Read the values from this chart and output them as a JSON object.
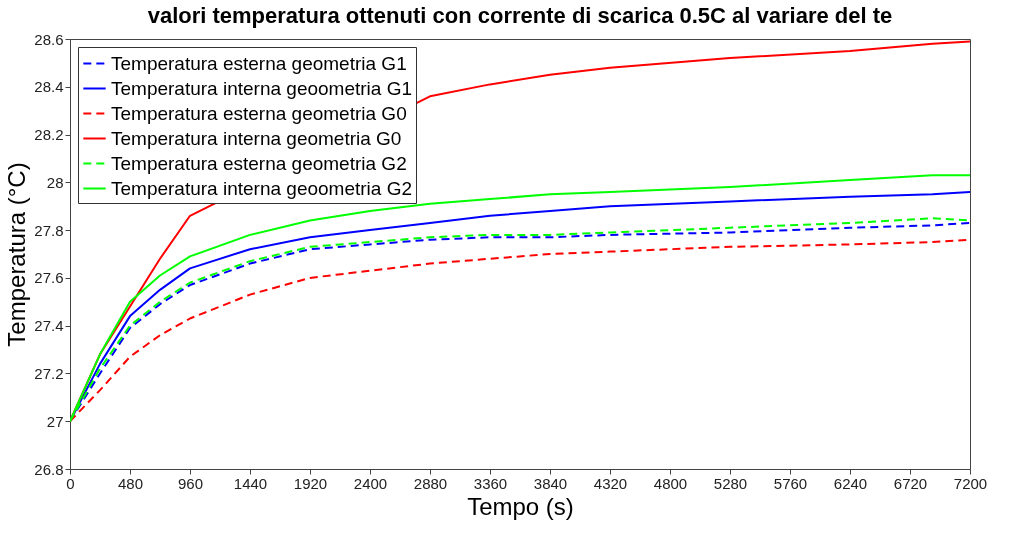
{
  "chart_data": {
    "type": "line",
    "title": "valori temperatura ottenuti con corrente di scarica 0.5C al variare del te",
    "xlabel": "Tempo (s)",
    "ylabel": "Temperatura (°C)",
    "x": [
      0,
      240,
      480,
      720,
      960,
      1440,
      1920,
      2400,
      2880,
      3360,
      3840,
      4320,
      5280,
      6240,
      6900,
      7200
    ],
    "series": [
      {
        "name": "Temperatura esterna geometria G1",
        "color": "#0000ff",
        "line_style": "dashed",
        "values": [
          27.0,
          27.2,
          27.39,
          27.49,
          27.57,
          27.66,
          27.72,
          27.74,
          27.76,
          27.77,
          27.77,
          27.78,
          27.79,
          27.81,
          27.82,
          27.83
        ]
      },
      {
        "name": "Temperatura interna geoometria G1",
        "color": "#0000ff",
        "line_style": "solid",
        "values": [
          27.0,
          27.24,
          27.44,
          27.55,
          27.64,
          27.72,
          27.77,
          27.8,
          27.83,
          27.86,
          27.88,
          27.9,
          27.92,
          27.94,
          27.95,
          27.96
        ]
      },
      {
        "name": "Temperatura esterna geometria G0",
        "color": "#ff0000",
        "line_style": "dashed",
        "values": [
          27.0,
          27.13,
          27.27,
          27.36,
          27.43,
          27.53,
          27.6,
          27.63,
          27.66,
          27.68,
          27.7,
          27.71,
          27.73,
          27.74,
          27.75,
          27.76
        ]
      },
      {
        "name": "Temperatura interna geometria G0",
        "color": "#ff0000",
        "line_style": "solid",
        "values": [
          27.0,
          27.28,
          27.48,
          27.68,
          27.86,
          null,
          null,
          null,
          28.36,
          28.41,
          28.45,
          28.48,
          28.52,
          28.55,
          28.58,
          28.59
        ]
      },
      {
        "name": "Temperatura esterna geometria G2",
        "color": "#00ff00",
        "line_style": "dashed",
        "values": [
          27.0,
          27.22,
          27.4,
          27.5,
          27.58,
          27.67,
          27.73,
          27.75,
          27.77,
          27.78,
          27.78,
          27.79,
          27.81,
          27.83,
          27.85,
          27.84
        ]
      },
      {
        "name": "Temperatura interna geoometria G2",
        "color": "#00ff00",
        "line_style": "solid",
        "values": [
          27.0,
          27.28,
          27.5,
          27.61,
          27.69,
          27.78,
          27.84,
          27.88,
          27.91,
          27.93,
          27.95,
          27.96,
          27.98,
          28.01,
          28.03,
          28.03
        ]
      }
    ],
    "xlim": [
      0,
      7200
    ],
    "xticks": [
      0,
      480,
      960,
      1440,
      1920,
      2400,
      2880,
      3360,
      3840,
      4320,
      4800,
      5280,
      5760,
      6240,
      6720,
      7200
    ],
    "ylim": [
      26.8,
      28.6
    ],
    "yticks": [
      26.8,
      27,
      27.2,
      27.4,
      27.6,
      27.8,
      28,
      28.2,
      28.4,
      28.6
    ],
    "grid": false,
    "legend": "top left",
    "marker": "none"
  }
}
